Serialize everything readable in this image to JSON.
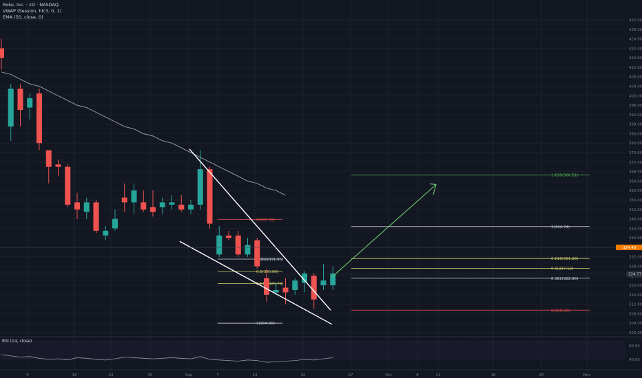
{
  "header": {
    "symbol_line": "Roku, Inc. · 1D · NASDAQ",
    "indicator_vwap": "VWAP (Session, hlc3, 0, 1)",
    "indicator_ema": "EMA (50, close, 0)",
    "rsi_label": "RSI (14, close)"
  },
  "colors": {
    "background": "#131722",
    "bull": "#26a69a",
    "bear": "#ef5350",
    "ema": "#9598a1",
    "wedge": "#ffffff",
    "arrow": "#66bb6a",
    "fib_green": "#4caf50",
    "fib_yellow": "#d4d46b",
    "fib_red": "#ef5350",
    "price_tag": "#2a2e39",
    "orange_tag": "#f57c00"
  },
  "price_axis": {
    "ticks": [
      "432.00",
      "428.00",
      "424.00",
      "420.00",
      "416.00",
      "412.00",
      "408.00",
      "404.00",
      "400.00",
      "396.00",
      "392.00",
      "388.00",
      "384.00",
      "380.00",
      "376.00",
      "372.00",
      "368.00",
      "364.00",
      "360.00",
      "356.00",
      "352.00",
      "348.00",
      "344.00",
      "340.00",
      "336.00",
      "332.00",
      "328.00",
      "324.00",
      "320.00",
      "316.00",
      "312.00",
      "308.00",
      "304.00",
      "300.00"
    ],
    "last_price": "324.77",
    "orange_label": "324.48"
  },
  "time_axis": {
    "ticks": [
      "9",
      "16",
      "23",
      "30",
      "Sep",
      "7",
      "13",
      "20",
      "27",
      "Oct",
      "6",
      "11",
      "18",
      "25",
      "Nov"
    ]
  },
  "rsi_axis": {
    "ticks": [
      "60.00",
      "40.00"
    ]
  },
  "chart_data": {
    "type": "candlestick",
    "y_range": [
      300,
      432
    ],
    "candles": [
      {
        "o": 420,
        "h": 424,
        "l": 411,
        "c": 416
      },
      {
        "o": 387,
        "h": 405,
        "l": 381,
        "c": 403
      },
      {
        "o": 403,
        "h": 405,
        "l": 387,
        "c": 394
      },
      {
        "o": 395,
        "h": 401,
        "l": 390,
        "c": 399
      },
      {
        "o": 401,
        "h": 403,
        "l": 377,
        "c": 380
      },
      {
        "o": 377,
        "h": 377,
        "l": 363,
        "c": 370
      },
      {
        "o": 371,
        "h": 373,
        "l": 366,
        "c": 370
      },
      {
        "o": 370,
        "h": 371,
        "l": 353,
        "c": 354
      },
      {
        "o": 355,
        "h": 359,
        "l": 348,
        "c": 352
      },
      {
        "o": 351,
        "h": 357,
        "l": 348,
        "c": 355
      },
      {
        "o": 355,
        "h": 356,
        "l": 342,
        "c": 343
      },
      {
        "o": 341,
        "h": 345,
        "l": 339,
        "c": 343
      },
      {
        "o": 344,
        "h": 352,
        "l": 343,
        "c": 348
      },
      {
        "o": 357,
        "h": 363,
        "l": 351,
        "c": 355
      },
      {
        "o": 355,
        "h": 363,
        "l": 350,
        "c": 360
      },
      {
        "o": 355,
        "h": 360,
        "l": 351,
        "c": 352
      },
      {
        "o": 353,
        "h": 360,
        "l": 349,
        "c": 351
      },
      {
        "o": 353,
        "h": 357,
        "l": 350,
        "c": 355
      },
      {
        "o": 354,
        "h": 358,
        "l": 352,
        "c": 355
      },
      {
        "o": 354,
        "h": 358,
        "l": 351,
        "c": 352
      },
      {
        "o": 352,
        "h": 356,
        "l": 350,
        "c": 354
      },
      {
        "o": 354,
        "h": 377,
        "l": 352,
        "c": 369
      },
      {
        "o": 369,
        "h": 370,
        "l": 344,
        "c": 346
      },
      {
        "o": 333,
        "h": 345,
        "l": 332,
        "c": 341
      },
      {
        "o": 341,
        "h": 343,
        "l": 339,
        "c": 340
      },
      {
        "o": 341,
        "h": 343,
        "l": 332,
        "c": 333
      },
      {
        "o": 333,
        "h": 340,
        "l": 332,
        "c": 337
      },
      {
        "o": 339,
        "h": 340,
        "l": 327,
        "c": 328
      },
      {
        "o": 323,
        "h": 327,
        "l": 313,
        "c": 316
      },
      {
        "o": 317,
        "h": 321,
        "l": 316,
        "c": 318
      },
      {
        "o": 319,
        "h": 323,
        "l": 312,
        "c": 317
      },
      {
        "o": 318,
        "h": 323,
        "l": 316,
        "c": 322
      },
      {
        "o": 321,
        "h": 326,
        "l": 317,
        "c": 325
      },
      {
        "o": 324,
        "h": 325,
        "l": 310,
        "c": 314
      },
      {
        "o": 320,
        "h": 329,
        "l": 318,
        "c": 322
      },
      {
        "o": 320,
        "h": 328,
        "l": 318,
        "c": 325
      }
    ],
    "ema50": [
      410,
      409,
      407,
      405,
      404,
      402,
      400,
      398,
      396,
      395,
      393,
      391,
      389,
      387,
      386,
      384,
      383,
      381,
      380,
      378,
      376,
      374,
      372,
      370,
      368,
      366,
      364,
      363,
      361,
      360,
      358
    ],
    "fib_left": [
      {
        "label": "0(347.72)",
        "price": 347.72,
        "color": "red"
      },
      {
        "label": "0.382(331.05)",
        "price": 331.05,
        "color": "white"
      },
      {
        "label": "0.5(325.86)",
        "price": 325.86,
        "color": "yellow"
      },
      {
        "label": "0.618(320.70)",
        "price": 320.7,
        "color": "yellow"
      },
      {
        "label": "1(304.00)",
        "price": 304.0,
        "color": "white"
      }
    ],
    "fib_right": [
      {
        "label": "1.618(366.51)",
        "price": 366.51,
        "color": "green"
      },
      {
        "label": "1(344.74)",
        "price": 344.74,
        "color": "white"
      },
      {
        "label": "0.618(331.28)",
        "price": 331.28,
        "color": "yellow"
      },
      {
        "label": "0.5(327.12)",
        "price": 327.12,
        "color": "yellow"
      },
      {
        "label": "0.382(322.96)",
        "price": 322.96,
        "color": "white"
      },
      {
        "label": "0(309.50)",
        "price": 309.5,
        "color": "red"
      }
    ],
    "rsi": [
      51,
      49,
      47,
      48,
      45,
      43,
      44,
      42,
      46,
      45,
      43,
      42,
      44,
      47,
      46,
      45,
      44,
      45,
      46,
      45,
      44,
      48,
      43,
      42,
      41,
      40,
      42,
      41,
      38,
      39,
      40,
      41,
      43,
      42,
      44,
      46
    ]
  }
}
